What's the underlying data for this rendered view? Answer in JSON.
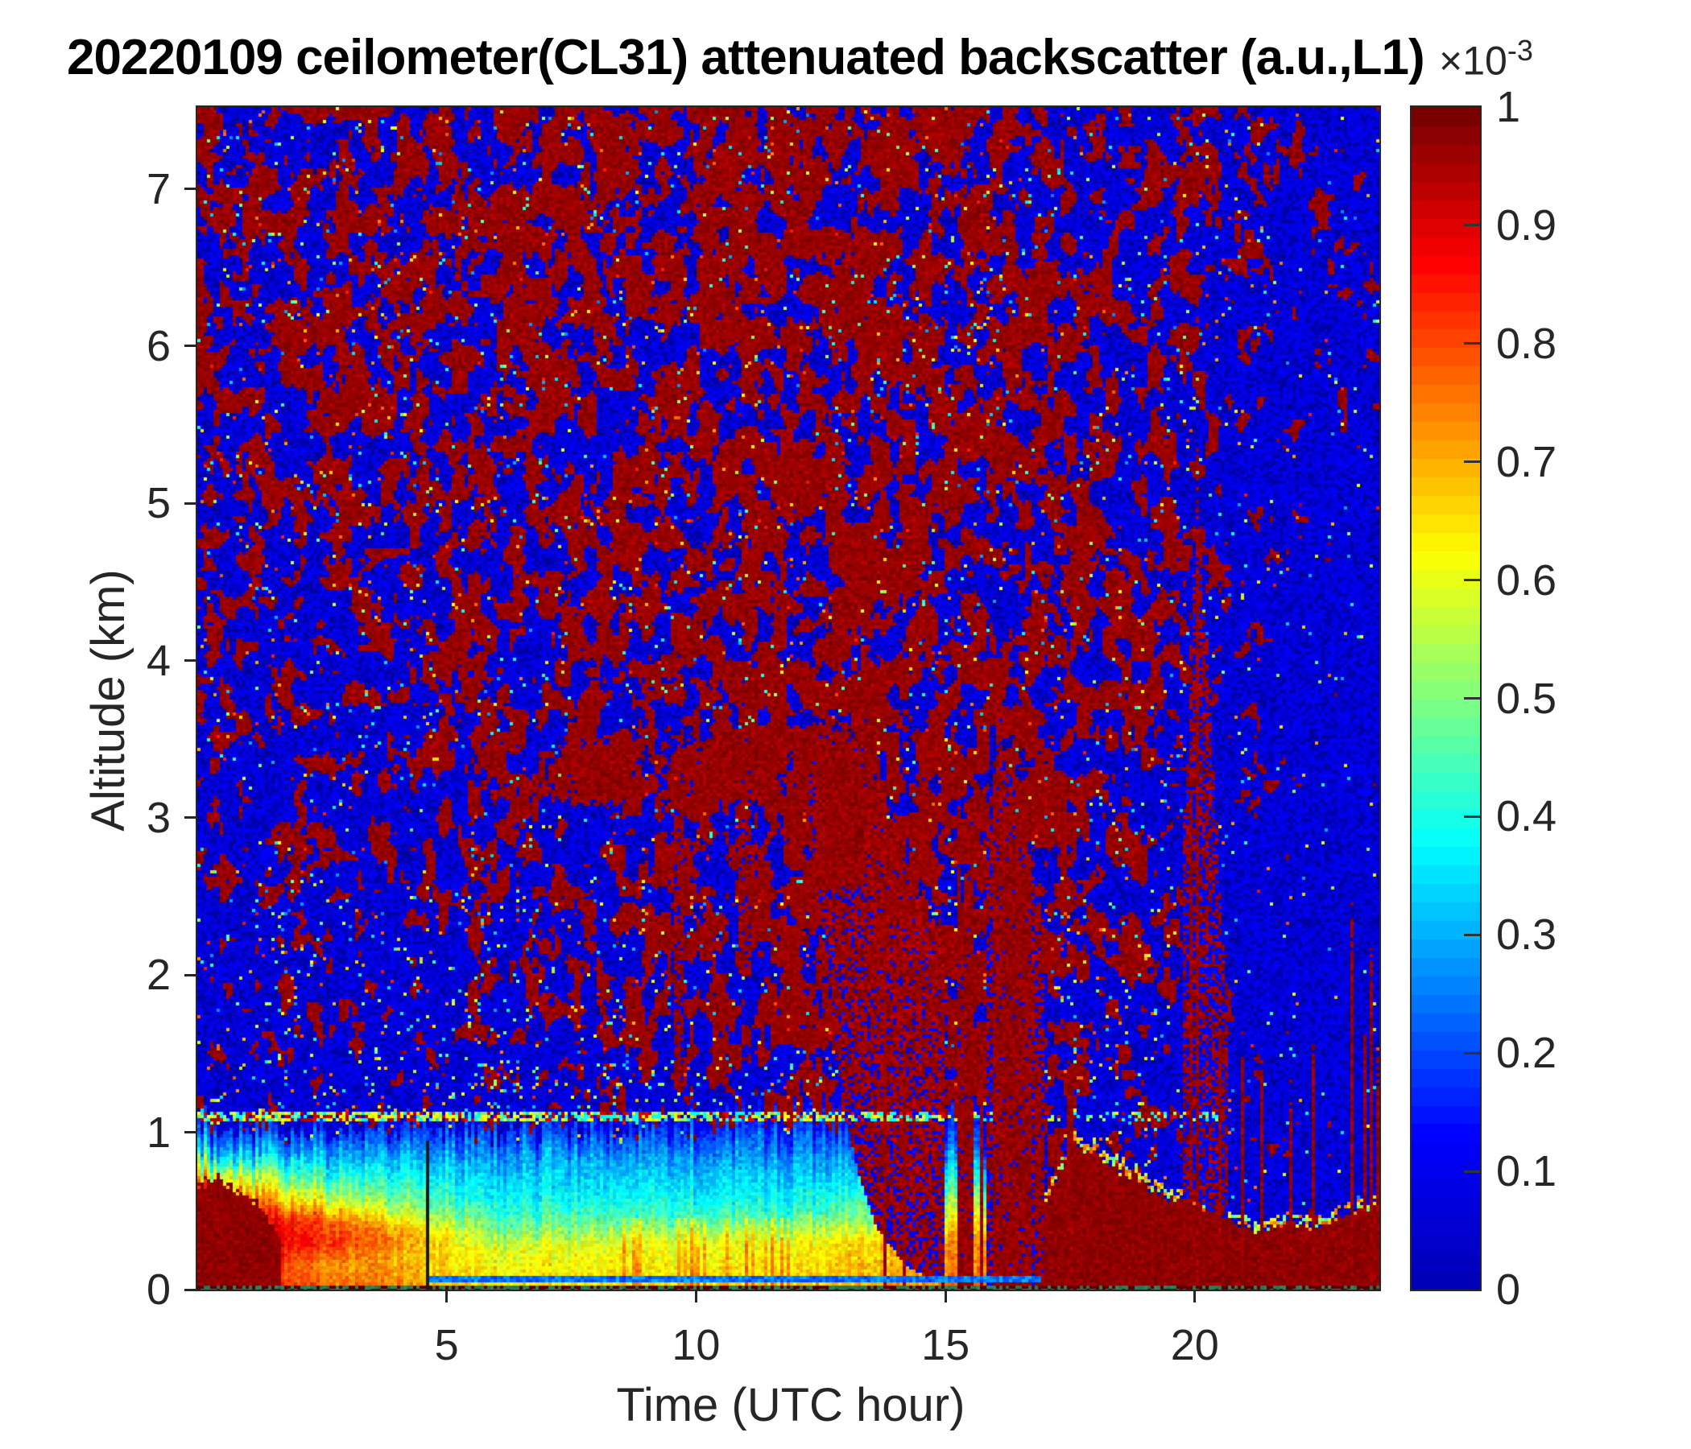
{
  "chart_data": {
    "type": "heatmap",
    "title": "20220109 ceilometer(CL31) attenuated backscatter (a.u.,L1)",
    "xlabel": "Time (UTC hour)",
    "ylabel": "Altitude (km)",
    "xlim": [
      0,
      23.7
    ],
    "ylim": [
      0,
      7.52
    ],
    "xticks": [
      5,
      10,
      15,
      20
    ],
    "yticks": [
      0,
      1,
      2,
      3,
      4,
      5,
      6,
      7
    ],
    "grid": false,
    "legend": "colorbar-right",
    "colormap": "jet",
    "colorbar": {
      "clim": [
        0,
        0.001
      ],
      "bands": 64,
      "tick_values": [
        0,
        0.1,
        0.2,
        0.3,
        0.4,
        0.5,
        0.6,
        0.7,
        0.8,
        0.9,
        1
      ],
      "tick_labels": [
        "0",
        "0.1",
        "0.2",
        "0.3",
        "0.4",
        "0.5",
        "0.6",
        "0.7",
        "0.8",
        "0.9",
        "1"
      ],
      "exponent_base": "×10",
      "exponent_sup": "-3"
    },
    "speckle": {
      "t_centers": [
        1,
        3,
        5,
        7,
        9,
        11,
        13,
        15,
        17,
        19,
        21,
        23
      ],
      "z_bands": [
        1.5,
        2.5,
        3.5,
        4.5,
        5.5,
        6.5,
        7.25
      ],
      "red_fraction": [
        [
          0.28,
          0.3,
          0.33,
          0.36,
          0.38,
          0.42,
          0.55,
          0.62,
          0.55,
          0.38,
          0.22,
          0.1
        ],
        [
          0.3,
          0.32,
          0.36,
          0.4,
          0.44,
          0.46,
          0.68,
          0.6,
          0.52,
          0.42,
          0.2,
          0.09
        ],
        [
          0.34,
          0.36,
          0.4,
          0.46,
          0.5,
          0.52,
          0.62,
          0.58,
          0.52,
          0.45,
          0.22,
          0.1
        ],
        [
          0.4,
          0.42,
          0.46,
          0.5,
          0.52,
          0.54,
          0.58,
          0.56,
          0.52,
          0.5,
          0.28,
          0.12
        ],
        [
          0.44,
          0.46,
          0.5,
          0.52,
          0.55,
          0.56,
          0.6,
          0.56,
          0.52,
          0.48,
          0.34,
          0.18
        ],
        [
          0.48,
          0.5,
          0.52,
          0.55,
          0.56,
          0.58,
          0.62,
          0.56,
          0.52,
          0.46,
          0.38,
          0.26
        ],
        [
          0.5,
          0.52,
          0.54,
          0.56,
          0.57,
          0.58,
          0.62,
          0.56,
          0.5,
          0.44,
          0.4,
          0.3
        ]
      ],
      "bright_speck_prob": 0.022,
      "bright_speck_prob_low_alt": 0.055,
      "bright_speck_prob_night": 0.012
    },
    "boundary_layer": {
      "profiles": [
        {
          "t": 0.0,
          "stops": [
            [
              0,
              0.85
            ],
            [
              0.1,
              0.95
            ],
            [
              0.45,
              0.96
            ],
            [
              0.6,
              0.88
            ],
            [
              0.75,
              0.6
            ],
            [
              0.9,
              0.3
            ],
            [
              1.05,
              0.15
            ]
          ]
        },
        {
          "t": 2.5,
          "stops": [
            [
              0,
              0.8
            ],
            [
              0.15,
              0.74
            ],
            [
              0.3,
              0.85
            ],
            [
              0.45,
              0.8
            ],
            [
              0.6,
              0.55
            ],
            [
              0.8,
              0.35
            ],
            [
              1.0,
              0.17
            ]
          ]
        },
        {
          "t": 4.0,
          "stops": [
            [
              0,
              0.74
            ],
            [
              0.2,
              0.7
            ],
            [
              0.35,
              0.74
            ],
            [
              0.5,
              0.55
            ],
            [
              0.7,
              0.4
            ],
            [
              0.9,
              0.25
            ],
            [
              1.05,
              0.14
            ]
          ]
        },
        {
          "t": 6.0,
          "stops": [
            [
              0,
              0.65
            ],
            [
              0.25,
              0.6
            ],
            [
              0.4,
              0.48
            ],
            [
              0.6,
              0.36
            ],
            [
              0.8,
              0.3
            ],
            [
              1.0,
              0.17
            ]
          ]
        },
        {
          "t": 9.0,
          "stops": [
            [
              0,
              0.66
            ],
            [
              0.3,
              0.6
            ],
            [
              0.45,
              0.45
            ],
            [
              0.65,
              0.35
            ],
            [
              0.85,
              0.28
            ],
            [
              1.05,
              0.14
            ]
          ]
        },
        {
          "t": 12.0,
          "stops": [
            [
              0,
              0.68
            ],
            [
              0.3,
              0.62
            ],
            [
              0.5,
              0.42
            ],
            [
              0.7,
              0.33
            ],
            [
              0.9,
              0.25
            ],
            [
              1.1,
              0.12
            ]
          ]
        },
        {
          "t": 14.0,
          "stops": [
            [
              0,
              0.72
            ],
            [
              0.3,
              0.68
            ],
            [
              0.5,
              0.5
            ],
            [
              0.7,
              0.36
            ],
            [
              0.9,
              0.22
            ],
            [
              1.1,
              0.1
            ]
          ]
        },
        {
          "t": 16.0,
          "stops": [
            [
              0,
              0.8
            ],
            [
              0.3,
              0.75
            ],
            [
              0.5,
              0.6
            ],
            [
              0.7,
              0.4
            ],
            [
              0.9,
              0.2
            ],
            [
              1.1,
              0.1
            ]
          ]
        },
        {
          "t": 16.85,
          "stops": [
            [
              0,
              0.85
            ],
            [
              0.4,
              0.8
            ],
            [
              0.6,
              0.5
            ],
            [
              0.8,
              0.25
            ],
            [
              1.0,
              0.12
            ]
          ]
        }
      ]
    },
    "left_blob": {
      "t_end": 1.7,
      "top": [
        [
          0,
          0.66
        ],
        [
          0.4,
          0.72
        ],
        [
          0.8,
          0.62
        ],
        [
          1.2,
          0.55
        ],
        [
          1.5,
          0.42
        ],
        [
          1.7,
          0.28
        ]
      ]
    },
    "mound": {
      "t_start": 16.9,
      "top": [
        [
          16.9,
          0.45
        ],
        [
          17.2,
          0.7
        ],
        [
          17.6,
          0.92
        ],
        [
          18.0,
          0.88
        ],
        [
          18.4,
          0.78
        ],
        [
          18.8,
          0.72
        ],
        [
          19.2,
          0.62
        ],
        [
          19.6,
          0.58
        ],
        [
          20.0,
          0.55
        ],
        [
          20.4,
          0.5
        ],
        [
          20.8,
          0.42
        ],
        [
          21.2,
          0.36
        ],
        [
          21.6,
          0.4
        ],
        [
          22.0,
          0.42
        ],
        [
          22.4,
          0.38
        ],
        [
          22.8,
          0.44
        ],
        [
          23.2,
          0.5
        ],
        [
          23.5,
          0.47
        ],
        [
          23.7,
          0.58
        ]
      ]
    },
    "clouds": [
      [
        7.45,
        8.9,
        3.08,
        3.5
      ],
      [
        9.9,
        11.8,
        3.1,
        3.52
      ],
      [
        11.92,
        12.3,
        3.2,
        3.48
      ],
      [
        12.3,
        13.45,
        2.45,
        3.55
      ]
    ],
    "columns": [
      [
        9.55,
        9.78,
        1.25,
        3.2,
        0.85
      ],
      [
        10.85,
        11.08,
        2.0,
        3.2,
        0.85
      ],
      [
        15.25,
        15.58,
        0,
        2.75,
        0.95
      ],
      [
        15.95,
        16.32,
        0,
        3.35,
        0.95
      ],
      [
        16.36,
        16.72,
        0,
        2.95,
        0.95
      ],
      [
        16.78,
        16.98,
        0,
        1.3,
        0.9
      ]
    ],
    "bands": [
      {
        "t0": 12.25,
        "t1": 15.0,
        "density": 0.8,
        "top": [
          [
            12.25,
            3.6
          ],
          [
            13.3,
            3.45
          ],
          [
            14.0,
            3.0
          ],
          [
            14.5,
            2.6
          ],
          [
            15.0,
            2.2
          ]
        ],
        "bot": [
          [
            12.25,
            3.05
          ],
          [
            12.6,
            2.2
          ],
          [
            12.9,
            1.3
          ],
          [
            13.2,
            0.8
          ],
          [
            13.6,
            0.4
          ],
          [
            14.2,
            0.15
          ],
          [
            15.0,
            0.02
          ]
        ]
      },
      {
        "t0": 15.85,
        "t1": 17.0,
        "density": 0.55,
        "top": [
          [
            15.85,
            2.9
          ],
          [
            16.2,
            3.3
          ],
          [
            16.5,
            3.0
          ],
          [
            17.0,
            2.2
          ]
        ],
        "bot": [
          [
            15.85,
            0.0
          ],
          [
            17.0,
            0.0
          ]
        ]
      },
      {
        "t0": 19.75,
        "t1": 20.65,
        "density": 0.45,
        "top": [
          [
            19.75,
            2.6
          ],
          [
            20.0,
            4.6
          ],
          [
            20.1,
            5.0
          ],
          [
            20.35,
            3.4
          ],
          [
            20.65,
            1.8
          ]
        ],
        "bot": [
          [
            19.75,
            0.6
          ],
          [
            20.65,
            0.45
          ]
        ]
      }
    ],
    "spikes": [
      [
        13.78,
        2.95
      ],
      [
        14.18,
        1.65
      ],
      [
        15.7,
        1.5
      ],
      [
        17.5,
        1.35
      ],
      [
        19.92,
        3.4
      ],
      [
        20.07,
        4.95
      ],
      [
        20.5,
        1.7
      ],
      [
        20.95,
        1.5
      ],
      [
        21.35,
        1.45
      ],
      [
        21.9,
        1.25
      ],
      [
        22.35,
        1.55
      ],
      [
        23.15,
        2.35
      ],
      [
        23.38,
        1.6
      ],
      [
        23.55,
        2.05
      ],
      [
        23.66,
        1.4
      ]
    ],
    "lines": {
      "artifact_z": 1.1,
      "teal_z": 0.07,
      "black_gap_t": 15.05,
      "dark_gap_t": 4.63
    }
  }
}
